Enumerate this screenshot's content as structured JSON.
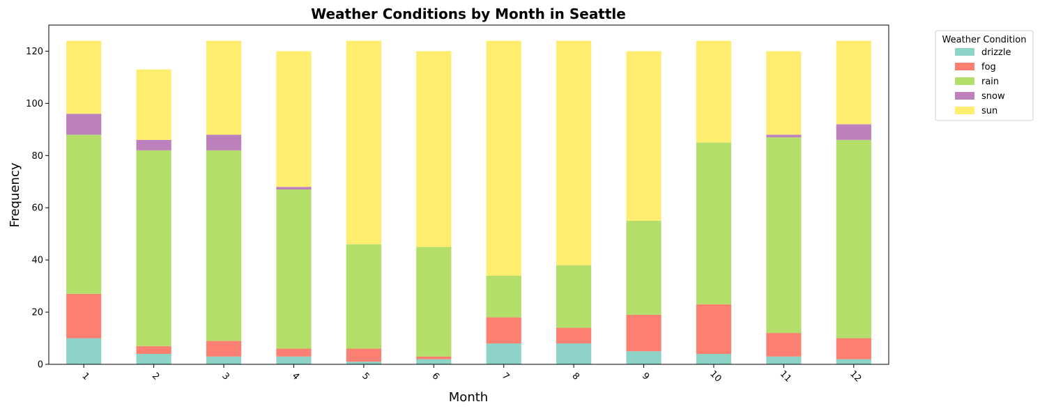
{
  "chart_data": {
    "type": "bar",
    "stacked": true,
    "title": "Weather Conditions by Month in Seattle",
    "xlabel": "Month",
    "ylabel": "Frequency",
    "categories": [
      "1",
      "2",
      "3",
      "4",
      "5",
      "6",
      "7",
      "8",
      "9",
      "10",
      "11",
      "12"
    ],
    "ylim": [
      0,
      130
    ],
    "yticks": [
      0,
      20,
      40,
      60,
      80,
      100,
      120
    ],
    "legend": {
      "title": "Weather Condition",
      "placement": "outside-top-right"
    },
    "grid": false,
    "series": [
      {
        "name": "drizzle",
        "color": "#8dd3c7",
        "values": [
          10,
          4,
          3,
          3,
          1,
          2,
          8,
          8,
          5,
          4,
          3,
          2
        ]
      },
      {
        "name": "fog",
        "color": "#fb8072",
        "values": [
          17,
          3,
          6,
          3,
          5,
          1,
          10,
          6,
          14,
          19,
          9,
          8
        ]
      },
      {
        "name": "rain",
        "color": "#b3de69",
        "values": [
          61,
          75,
          73,
          61,
          40,
          42,
          16,
          24,
          36,
          62,
          75,
          76
        ]
      },
      {
        "name": "snow",
        "color": "#bc80bd",
        "values": [
          8,
          4,
          6,
          1,
          0,
          0,
          0,
          0,
          0,
          0,
          1,
          6
        ]
      },
      {
        "name": "sun",
        "color": "#ffed6f",
        "values": [
          28,
          27,
          36,
          52,
          78,
          75,
          90,
          86,
          65,
          39,
          32,
          32
        ]
      }
    ]
  }
}
